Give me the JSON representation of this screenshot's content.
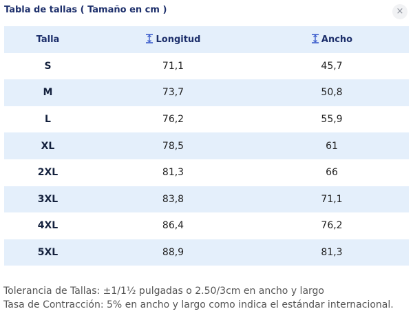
{
  "dialog": {
    "title": "Tabla de tallas ( Tamaño en cm )",
    "close_glyph": "×",
    "close_icon": "close-icon"
  },
  "table": {
    "headers": {
      "size": "Talla",
      "length": "Longitud",
      "width": "Ancho",
      "measure_icon": "vertical-measure-icon"
    },
    "rows": [
      {
        "size": "S",
        "length": "71,1",
        "width": "45,7"
      },
      {
        "size": "M",
        "length": "73,7",
        "width": "50,8"
      },
      {
        "size": "L",
        "length": "76,2",
        "width": "55,9"
      },
      {
        "size": "XL",
        "length": "78,5",
        "width": "61"
      },
      {
        "size": "2XL",
        "length": "81,3",
        "width": "66"
      },
      {
        "size": "3XL",
        "length": "83,8",
        "width": "71,1"
      },
      {
        "size": "4XL",
        "length": "86,4",
        "width": "76,2"
      },
      {
        "size": "5XL",
        "length": "88,9",
        "width": "81,3"
      }
    ]
  },
  "notes": {
    "tolerance": "Tolerancia de Tallas: ±1/1½ pulgadas o 2.50/3cm en ancho y largo",
    "shrinkage": "Tasa de Contracción: 5% en ancho y largo como indica el estándar internacional."
  },
  "colors": {
    "accent": "#1d2f6b",
    "stripe": "#e4effb",
    "icon": "#3b5ccc"
  }
}
